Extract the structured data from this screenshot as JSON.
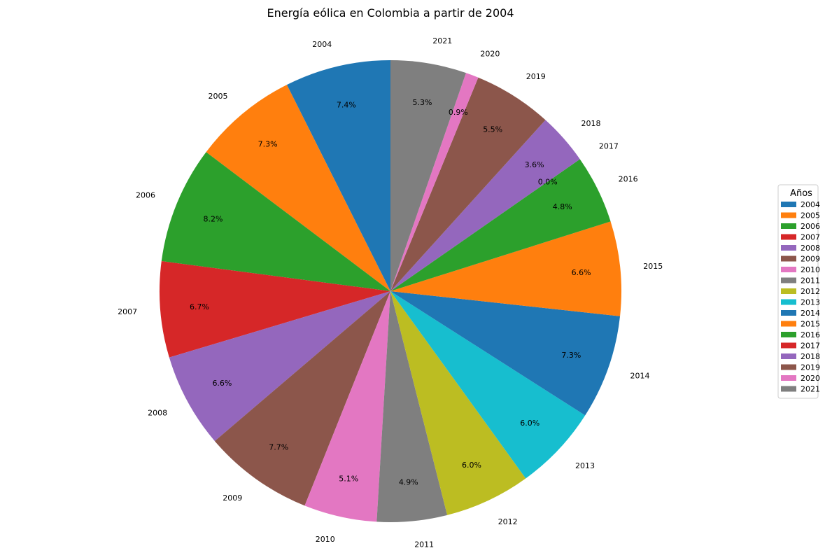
{
  "chart_data": {
    "type": "pie",
    "title": "Energía eólica en Colombia a partir de 2004",
    "categories": [
      "2004",
      "2005",
      "2006",
      "2007",
      "2008",
      "2009",
      "2010",
      "2011",
      "2012",
      "2013",
      "2014",
      "2015",
      "2016",
      "2017",
      "2018",
      "2019",
      "2020",
      "2021"
    ],
    "values": [
      7.4,
      7.3,
      8.2,
      6.7,
      6.6,
      7.7,
      5.1,
      4.9,
      6.0,
      6.0,
      7.3,
      6.6,
      4.8,
      0.0,
      3.6,
      5.5,
      0.9,
      5.3
    ],
    "value_labels": [
      "7.4%",
      "7.3%",
      "8.2%",
      "6.7%",
      "6.6%",
      "7.7%",
      "5.1%",
      "4.9%",
      "6.0%",
      "6.0%",
      "7.3%",
      "6.6%",
      "4.8%",
      "0.0%",
      "3.6%",
      "5.5%",
      "0.9%",
      "5.3%"
    ],
    "colors": [
      "#1f77b4",
      "#ff7f0e",
      "#2ca02c",
      "#d62728",
      "#9467bd",
      "#8c564b",
      "#e377c2",
      "#7f7f7f",
      "#bcbd22",
      "#17becf",
      "#1f77b4",
      "#ff7f0e",
      "#2ca02c",
      "#d62728",
      "#9467bd",
      "#8c564b",
      "#e377c2",
      "#7f7f7f"
    ],
    "start_angle": 90,
    "direction": "counterclockwise",
    "legend": {
      "title": "Años",
      "placement": "right"
    }
  }
}
